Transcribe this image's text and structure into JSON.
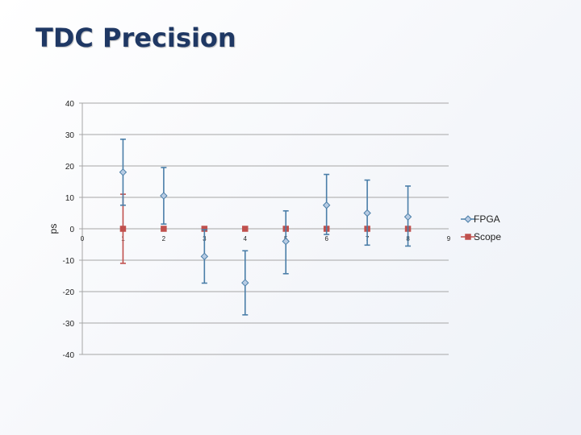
{
  "slide": {
    "title": "TDC Precision"
  },
  "chart_data": {
    "type": "scatter",
    "title": "",
    "xlabel": "",
    "ylabel": "ps",
    "x_ticks": [
      "0",
      "1",
      "2",
      "3",
      "4",
      "5",
      "6",
      "7",
      "8",
      "9"
    ],
    "y_ticks": [
      "40",
      "30",
      "20",
      "10",
      "0",
      "-10",
      "-20",
      "-30",
      "-40"
    ],
    "xlim": [
      0,
      9
    ],
    "ylim": [
      -40,
      40
    ],
    "grid": "horizontal",
    "legend_position": "right",
    "series": [
      {
        "name": "FPGA",
        "color": "#4a7ea8",
        "marker": "diamond",
        "x": [
          1,
          2,
          3,
          4,
          5,
          6,
          7,
          8
        ],
        "y": [
          18,
          10.5,
          -8.8,
          -17.2,
          -4,
          7.5,
          5,
          3.8
        ],
        "error_plus": [
          10.5,
          9,
          8.5,
          10.2,
          9.7,
          9.8,
          10.5,
          9.8
        ],
        "error_minus": [
          10.5,
          9,
          8.5,
          10.2,
          10.3,
          9.3,
          10.2,
          9.3
        ]
      },
      {
        "name": "Scope",
        "color": "#c0504d",
        "marker": "square",
        "x": [
          1,
          2,
          3,
          4,
          5,
          6,
          7,
          8
        ],
        "y": [
          0,
          0,
          0,
          0,
          0,
          0,
          0,
          0
        ],
        "error_plus": [
          11,
          0,
          0,
          0,
          0,
          0,
          0,
          0
        ],
        "error_minus": [
          11,
          0,
          0,
          0,
          0,
          0,
          0,
          0
        ]
      }
    ]
  }
}
